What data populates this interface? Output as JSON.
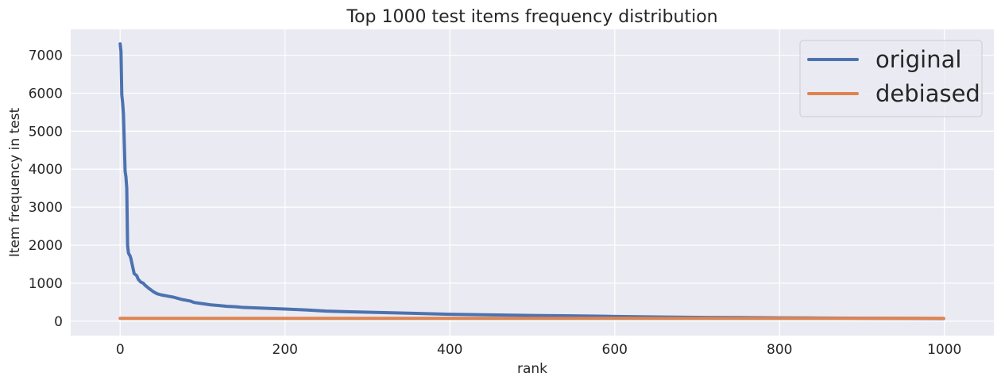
{
  "chart_data": {
    "type": "line",
    "title": "Top 1000 test items frequency distribution",
    "xlabel": "rank",
    "ylabel": "Item frequency in test",
    "xlim": [
      -60,
      1060
    ],
    "ylim": [
      -380,
      7680
    ],
    "x_ticks": [
      0,
      200,
      400,
      600,
      800,
      1000
    ],
    "y_ticks": [
      0,
      1000,
      2000,
      3000,
      4000,
      5000,
      6000,
      7000
    ],
    "grid": true,
    "legend_position": "top-right",
    "series": [
      {
        "name": "original",
        "color": "#4c72b0",
        "x": [
          0,
          1,
          2,
          3,
          4,
          5,
          6,
          7,
          8,
          9,
          10,
          11,
          12,
          13,
          15,
          17,
          20,
          22,
          25,
          28,
          30,
          35,
          40,
          45,
          50,
          55,
          60,
          65,
          70,
          75,
          80,
          85,
          90,
          100,
          110,
          120,
          130,
          140,
          150,
          175,
          200,
          225,
          250,
          275,
          300,
          350,
          400,
          450,
          500,
          550,
          600,
          650,
          700,
          750,
          800,
          850,
          900,
          950,
          999
        ],
        "y": [
          7300,
          7100,
          5950,
          5750,
          5450,
          4700,
          3950,
          3800,
          3500,
          2000,
          1800,
          1750,
          1720,
          1650,
          1450,
          1250,
          1200,
          1100,
          1030,
          1000,
          950,
          860,
          780,
          720,
          690,
          670,
          650,
          630,
          600,
          570,
          550,
          530,
          490,
          460,
          430,
          410,
          390,
          380,
          360,
          340,
          320,
          295,
          265,
          250,
          235,
          210,
          180,
          165,
          150,
          140,
          125,
          110,
          100,
          95,
          88,
          82,
          78,
          75,
          70
        ]
      },
      {
        "name": "debiased",
        "color": "#dd8452",
        "x": [
          0,
          999
        ],
        "y": [
          75,
          75
        ]
      }
    ]
  }
}
